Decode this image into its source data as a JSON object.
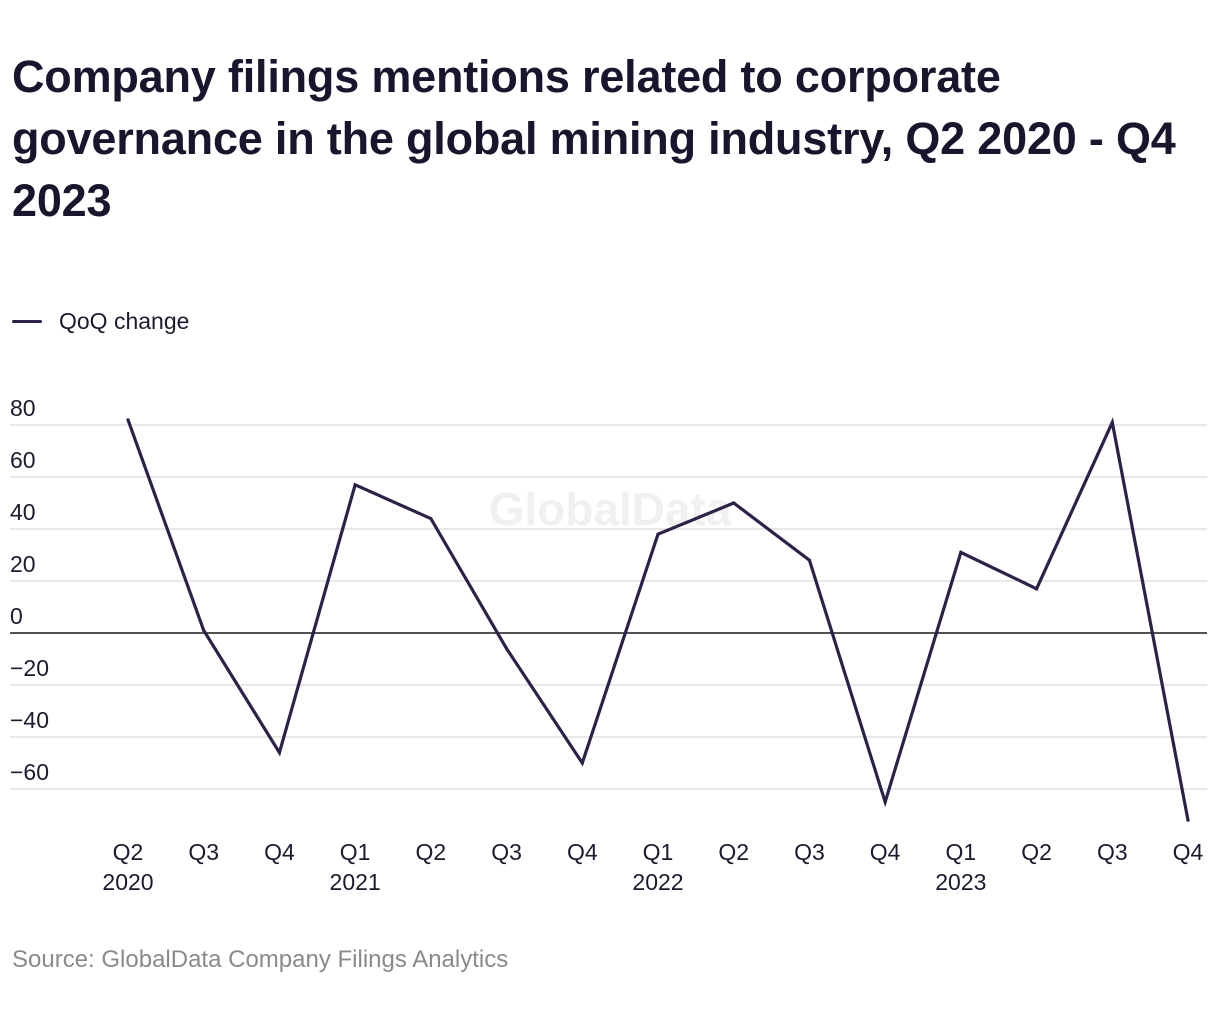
{
  "title": "Company filings mentions related to corporate governance in the global mining industry, Q2 2020 - Q4 2023",
  "source": "Source: GlobalData Company Filings Analytics",
  "watermark": "GlobalData",
  "colors": {
    "series": "#2e2148",
    "grid": "#d9d9d9",
    "zero_line": "#1a1a1a",
    "axis_text": "#1b1a2e",
    "source_text": "#8a8a8a"
  },
  "chart_data": {
    "type": "line",
    "title": "Company filings mentions related to corporate governance in the global mining industry, Q2 2020 - Q4 2023",
    "xlabel": "",
    "ylabel": "",
    "categories": [
      "Q2 2020",
      "Q3 2020",
      "Q4 2020",
      "Q1 2021",
      "Q2 2021",
      "Q3 2021",
      "Q4 2021",
      "Q1 2022",
      "Q2 2022",
      "Q3 2022",
      "Q4 2022",
      "Q1 2023",
      "Q2 2023",
      "Q3 2023",
      "Q4 2023"
    ],
    "tick_labels": [
      {
        "quarter": "Q2",
        "year": "2020"
      },
      {
        "quarter": "Q3",
        "year": ""
      },
      {
        "quarter": "Q4",
        "year": ""
      },
      {
        "quarter": "Q1",
        "year": "2021"
      },
      {
        "quarter": "Q2",
        "year": ""
      },
      {
        "quarter": "Q3",
        "year": ""
      },
      {
        "quarter": "Q4",
        "year": ""
      },
      {
        "quarter": "Q1",
        "year": "2022"
      },
      {
        "quarter": "Q2",
        "year": ""
      },
      {
        "quarter": "Q3",
        "year": ""
      },
      {
        "quarter": "Q4",
        "year": ""
      },
      {
        "quarter": "Q1",
        "year": "2023"
      },
      {
        "quarter": "Q2",
        "year": ""
      },
      {
        "quarter": "Q3",
        "year": ""
      },
      {
        "quarter": "Q4",
        "year": ""
      }
    ],
    "series": [
      {
        "name": "QoQ change",
        "values": [
          82,
          1,
          -46,
          57,
          44,
          -6,
          -50,
          38,
          50,
          28,
          -65,
          31,
          17,
          81,
          -72
        ]
      }
    ],
    "y_ticks": [
      80,
      60,
      40,
      20,
      0,
      -20,
      -40,
      -60
    ],
    "y_tick_labels": [
      "80",
      "60",
      "40",
      "20",
      "0",
      "−20",
      "−40",
      "−60"
    ],
    "ylim": [
      -72,
      82
    ],
    "grid": true,
    "legend_position": "top-left"
  }
}
